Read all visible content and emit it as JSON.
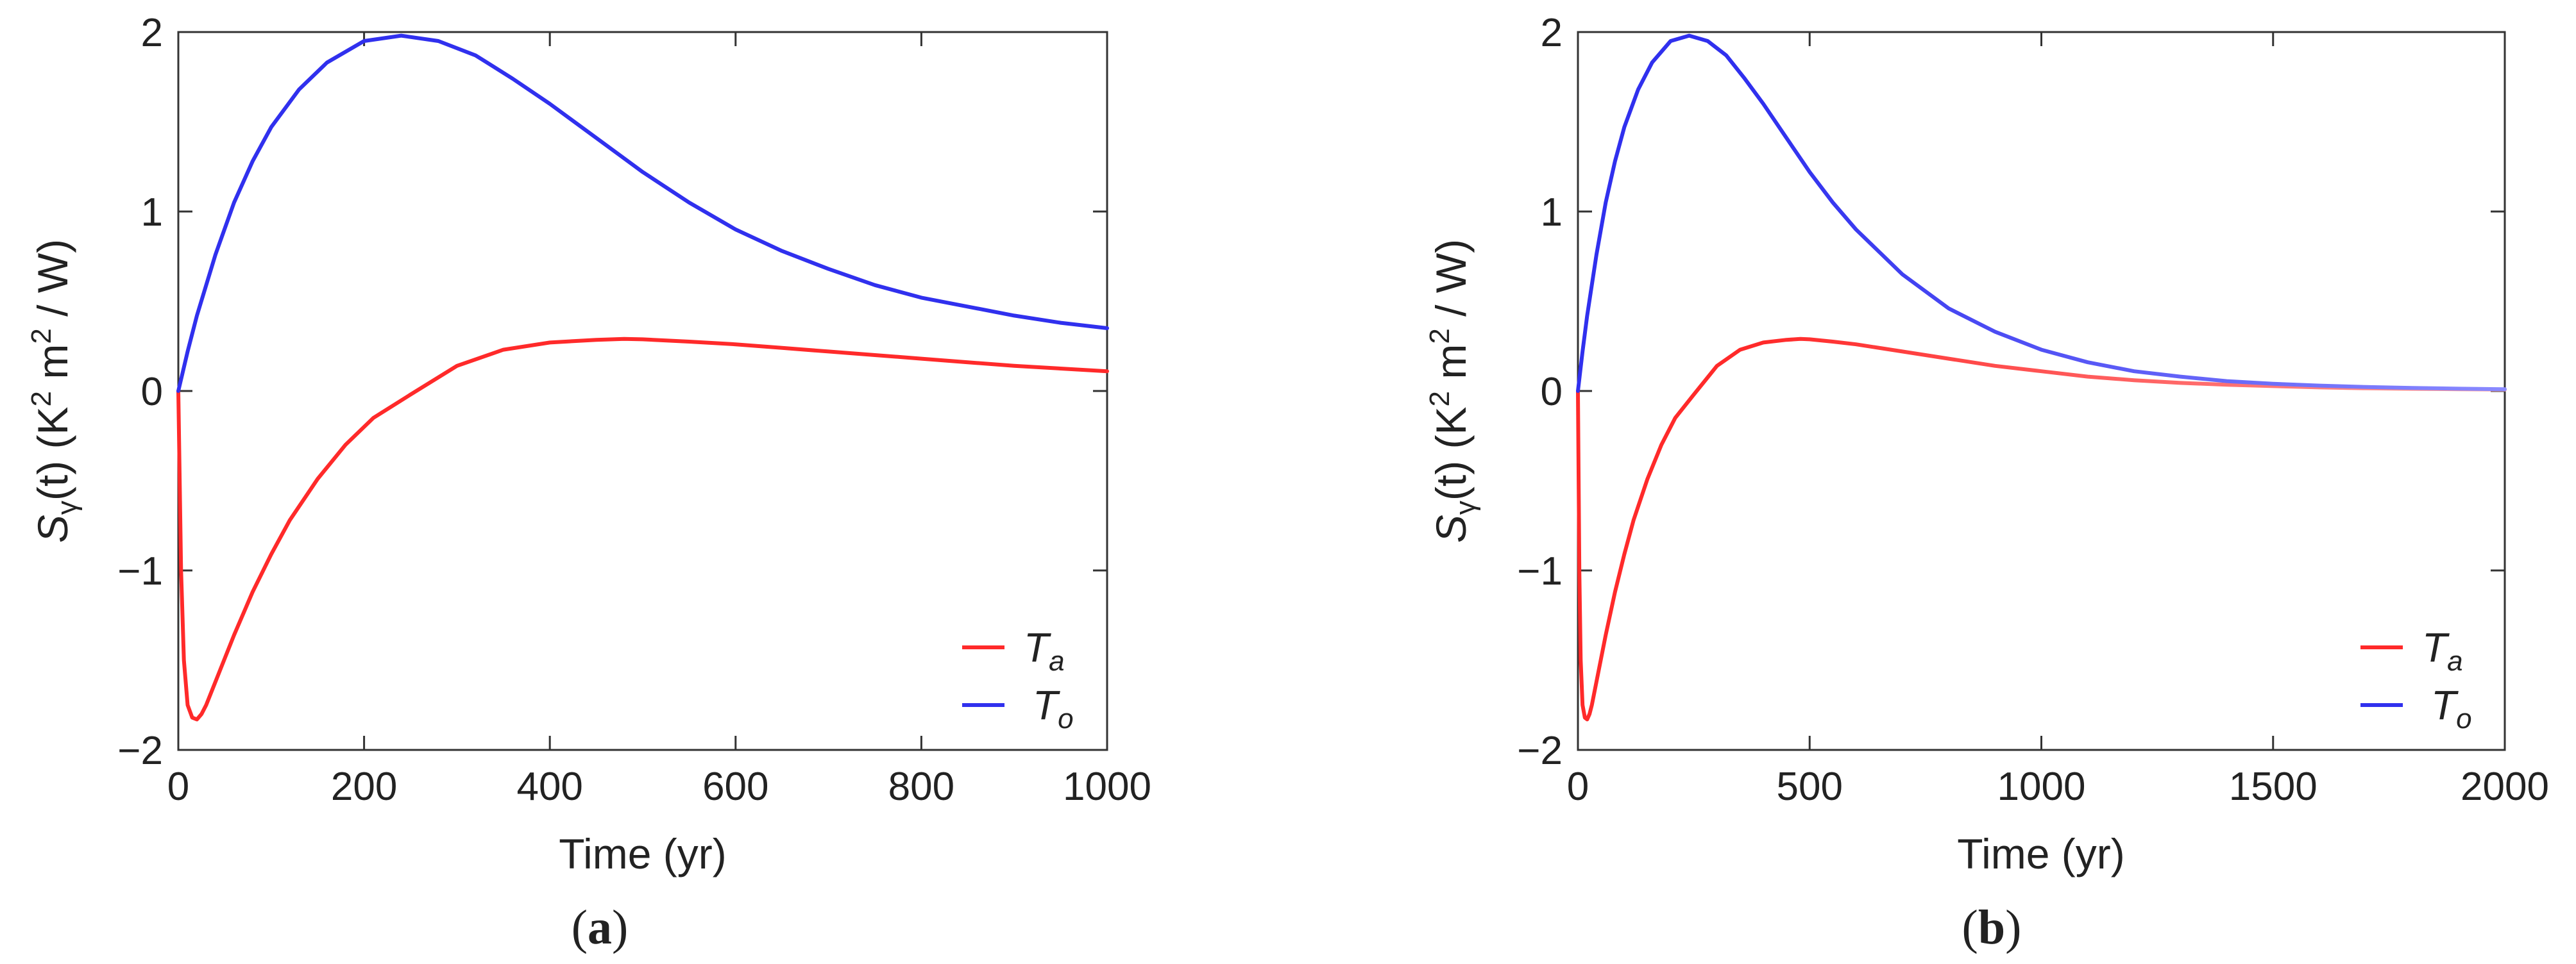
{
  "chart_data": [
    {
      "type": "line",
      "panel_label": "a",
      "xlabel": "Time (yr)",
      "ylabel": {
        "base": "S",
        "sub": "γ",
        "arg": "(t)",
        "units_open": " (K",
        "units_sup": "2",
        "units_rest": " m",
        "units_sup2": "2",
        "units_close": " / W)"
      },
      "xlim": [
        0,
        1000
      ],
      "ylim": [
        -2,
        2
      ],
      "xticks": [
        0,
        200,
        400,
        600,
        800,
        1000
      ],
      "yticks": [
        -2,
        -1,
        0,
        1,
        2
      ],
      "xtick_labels": [
        "0",
        "200",
        "400",
        "600",
        "800",
        "1000"
      ],
      "ytick_labels": [
        "−2",
        "−1",
        "0",
        "1",
        "2"
      ],
      "grid": false,
      "legend_position": "bottom-right",
      "series": [
        {
          "name": {
            "base": "T",
            "sub": "a"
          },
          "color": "#ff2a2a",
          "x": [
            0,
            3,
            6,
            10,
            15,
            20,
            25,
            30,
            40,
            50,
            60,
            80,
            100,
            120,
            150,
            180,
            210,
            250,
            300,
            350,
            400,
            450,
            480,
            500,
            550,
            600,
            650,
            700,
            750,
            800,
            850,
            900,
            950,
            1000
          ],
          "y": [
            0,
            -1.0,
            -1.5,
            -1.75,
            -1.82,
            -1.83,
            -1.8,
            -1.75,
            -1.62,
            -1.49,
            -1.36,
            -1.12,
            -0.91,
            -0.72,
            -0.49,
            -0.3,
            -0.15,
            -0.02,
            0.14,
            0.23,
            0.27,
            0.285,
            0.29,
            0.288,
            0.275,
            0.26,
            0.24,
            0.22,
            0.2,
            0.18,
            0.16,
            0.14,
            0.125,
            0.11
          ]
        },
        {
          "name": {
            "base": "T",
            "sub": "o"
          },
          "color": "#3030ee",
          "x": [
            0,
            10,
            20,
            40,
            60,
            80,
            100,
            130,
            160,
            200,
            240,
            280,
            320,
            360,
            400,
            450,
            500,
            550,
            600,
            650,
            700,
            750,
            800,
            850,
            900,
            950,
            1000
          ],
          "y": [
            0,
            0.22,
            0.42,
            0.76,
            1.05,
            1.28,
            1.47,
            1.68,
            1.83,
            1.95,
            1.98,
            1.95,
            1.87,
            1.74,
            1.6,
            1.41,
            1.22,
            1.05,
            0.9,
            0.78,
            0.68,
            0.59,
            0.52,
            0.47,
            0.42,
            0.38,
            0.35
          ]
        }
      ]
    },
    {
      "type": "line",
      "panel_label": "b",
      "xlabel": "Time (yr)",
      "ylabel": {
        "base": "S",
        "sub": "γ",
        "arg": "(t)",
        "units_open": " (K",
        "units_sup": "2",
        "units_rest": " m",
        "units_sup2": "2",
        "units_close": " / W)"
      },
      "xlim": [
        0,
        2000
      ],
      "ylim": [
        -2,
        2
      ],
      "xticks": [
        0,
        500,
        1000,
        1500,
        2000
      ],
      "yticks": [
        -2,
        -1,
        0,
        1,
        2
      ],
      "xtick_labels": [
        "0",
        "500",
        "1000",
        "1500",
        "2000"
      ],
      "ytick_labels": [
        "−2",
        "−1",
        "0",
        "1",
        "2"
      ],
      "grid": false,
      "legend_position": "bottom-right",
      "series": [
        {
          "name": {
            "base": "T",
            "sub": "a"
          },
          "color": "#ff2a2a",
          "fade_color": "#ff9a9a",
          "x": [
            0,
            3,
            6,
            10,
            15,
            20,
            25,
            30,
            40,
            50,
            60,
            80,
            100,
            120,
            150,
            180,
            210,
            250,
            300,
            350,
            400,
            450,
            480,
            500,
            550,
            600,
            700,
            800,
            900,
            1000,
            1100,
            1200,
            1300,
            1400,
            1500,
            1600,
            1700,
            1800,
            1900,
            2000
          ],
          "y": [
            0,
            -1.0,
            -1.5,
            -1.75,
            -1.82,
            -1.83,
            -1.8,
            -1.75,
            -1.62,
            -1.49,
            -1.36,
            -1.12,
            -0.91,
            -0.72,
            -0.49,
            -0.3,
            -0.15,
            -0.02,
            0.14,
            0.23,
            0.27,
            0.285,
            0.29,
            0.288,
            0.275,
            0.26,
            0.22,
            0.18,
            0.14,
            0.11,
            0.08,
            0.06,
            0.045,
            0.035,
            0.027,
            0.02,
            0.015,
            0.012,
            0.01,
            0.008
          ]
        },
        {
          "name": {
            "base": "T",
            "sub": "o"
          },
          "color": "#3030ee",
          "fade_color": "#8a8aff",
          "x": [
            0,
            10,
            20,
            40,
            60,
            80,
            100,
            130,
            160,
            200,
            240,
            280,
            320,
            360,
            400,
            450,
            500,
            550,
            600,
            700,
            800,
            900,
            1000,
            1100,
            1200,
            1300,
            1400,
            1500,
            1600,
            1700,
            1800,
            1900,
            2000
          ],
          "y": [
            0,
            0.22,
            0.42,
            0.76,
            1.05,
            1.28,
            1.47,
            1.68,
            1.83,
            1.95,
            1.98,
            1.95,
            1.87,
            1.74,
            1.6,
            1.41,
            1.22,
            1.05,
            0.9,
            0.65,
            0.46,
            0.33,
            0.23,
            0.16,
            0.11,
            0.08,
            0.055,
            0.04,
            0.03,
            0.022,
            0.017,
            0.013,
            0.01
          ]
        }
      ]
    }
  ]
}
